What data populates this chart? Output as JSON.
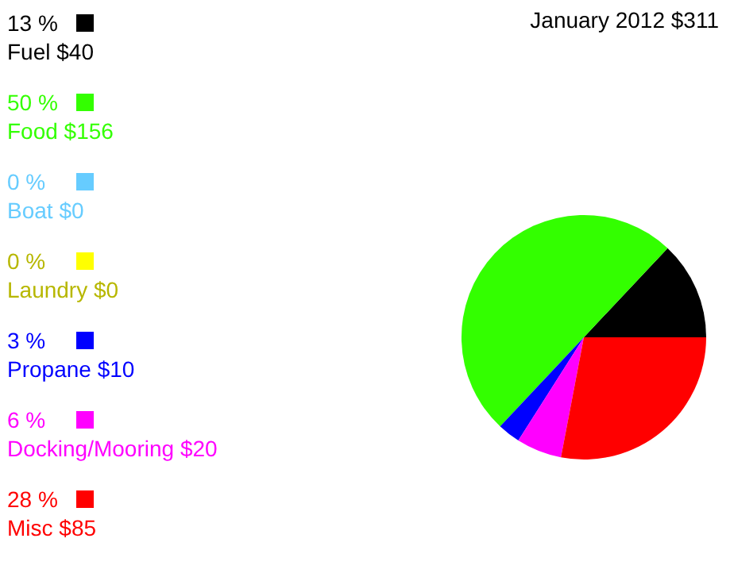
{
  "chart_data": {
    "type": "pie",
    "title": "January 2012 $311",
    "categories": [
      "Fuel $40",
      "Food $156",
      "Boat $0",
      "Laundry $0",
      "Propane $10",
      "Docking/Mooring $20",
      "Misc $85"
    ],
    "values": [
      13,
      50,
      0,
      0,
      3,
      6,
      28
    ],
    "colors": [
      "#000000",
      "#33ff00",
      "#66ccff",
      "#ffff00",
      "#0000ff",
      "#ff00ff",
      "#ff0000"
    ],
    "value_labels": [
      "13 %",
      "50 %",
      "0 %",
      "0 %",
      "3 %",
      "6 %",
      "28 %"
    ],
    "legend": "left"
  }
}
